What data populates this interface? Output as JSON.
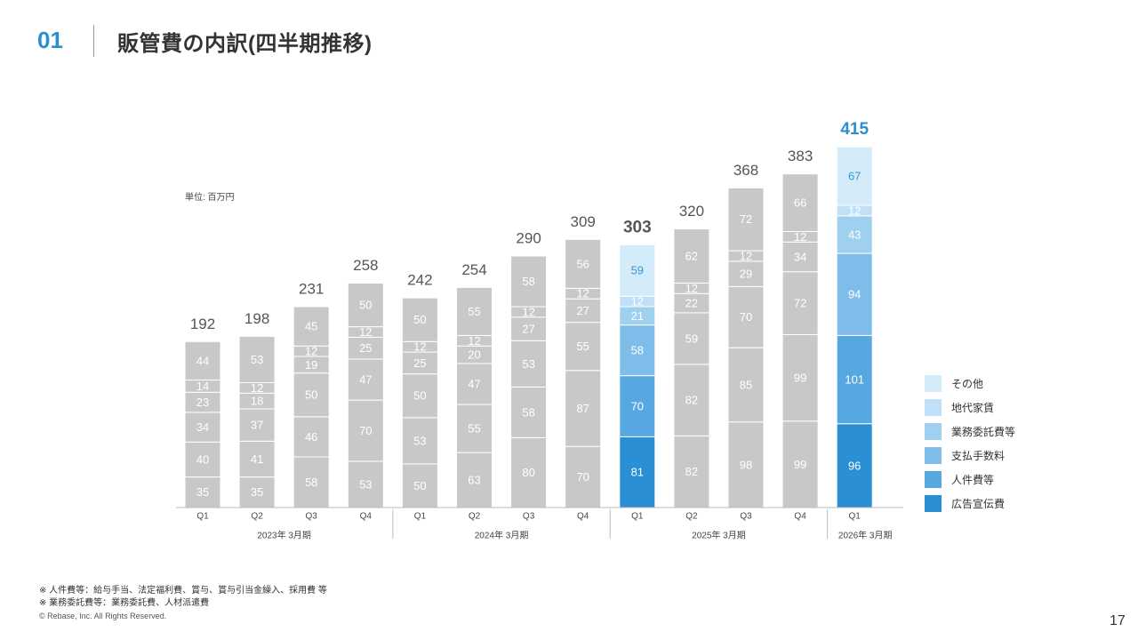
{
  "header": {
    "section_number": "01",
    "title": "販管費の内訳(四半期推移)"
  },
  "unit_label": "単位: 百万円",
  "legend": {
    "items": [
      "その他",
      "地代家賃",
      "業務委託費等",
      "支払手数料",
      "人件費等",
      "広告宣伝費"
    ],
    "colors": [
      "#d4ebf9",
      "#bfe0f6",
      "#9fd0f0",
      "#7ebde9",
      "#57a8e0",
      "#2b8fd6"
    ]
  },
  "footnotes": [
    "※ 人件費等：給与手当、法定福利費、賞与、賞与引当金繰入、採用費 等",
    "※ 業務委託費等：業務委託費、人材派遣費"
  ],
  "copyright": "© Rebase, Inc. All Rights Reserved.",
  "page_number": "17",
  "chart_data": {
    "type": "bar",
    "stacked": true,
    "title": "",
    "xlabel": "",
    "ylabel": "",
    "ylim": [
      0,
      415
    ],
    "grid": false,
    "legend_position": "right",
    "categories": [
      "Q1",
      "Q2",
      "Q3",
      "Q4",
      "Q1",
      "Q2",
      "Q3",
      "Q4",
      "Q1",
      "Q2",
      "Q3",
      "Q4",
      "Q1"
    ],
    "groups": [
      {
        "label": "2023年 3月期",
        "start": 0,
        "end": 3
      },
      {
        "label": "2024年 3月期",
        "start": 4,
        "end": 7
      },
      {
        "label": "2025年 3月期",
        "start": 8,
        "end": 11
      },
      {
        "label": "2026年 3月期",
        "start": 12,
        "end": 12
      }
    ],
    "totals": [
      192,
      198,
      231,
      258,
      242,
      254,
      290,
      309,
      303,
      320,
      368,
      383,
      415
    ],
    "highlighted": [
      8,
      12
    ],
    "highlight_total_colors": [
      "#555555",
      "#2a8fcc"
    ],
    "series": [
      {
        "name": "広告宣伝費",
        "values": [
          35,
          35,
          58,
          53,
          50,
          63,
          80,
          70,
          81,
          82,
          98,
          99,
          96
        ]
      },
      {
        "name": "人件費等",
        "values": [
          40,
          41,
          46,
          70,
          53,
          55,
          58,
          87,
          70,
          82,
          85,
          99,
          101
        ]
      },
      {
        "name": "支払手数料",
        "values": [
          34,
          37,
          50,
          47,
          50,
          47,
          53,
          55,
          58,
          59,
          70,
          72,
          94
        ]
      },
      {
        "name": "業務委託費等",
        "values": [
          23,
          18,
          19,
          25,
          25,
          20,
          27,
          27,
          21,
          22,
          29,
          34,
          43
        ]
      },
      {
        "name": "地代家賃",
        "values": [
          14,
          12,
          12,
          12,
          12,
          12,
          12,
          12,
          12,
          12,
          12,
          12,
          12
        ]
      },
      {
        "name": "その他",
        "values": [
          44,
          53,
          45,
          50,
          50,
          55,
          58,
          56,
          59,
          62,
          72,
          66,
          67
        ]
      }
    ]
  }
}
